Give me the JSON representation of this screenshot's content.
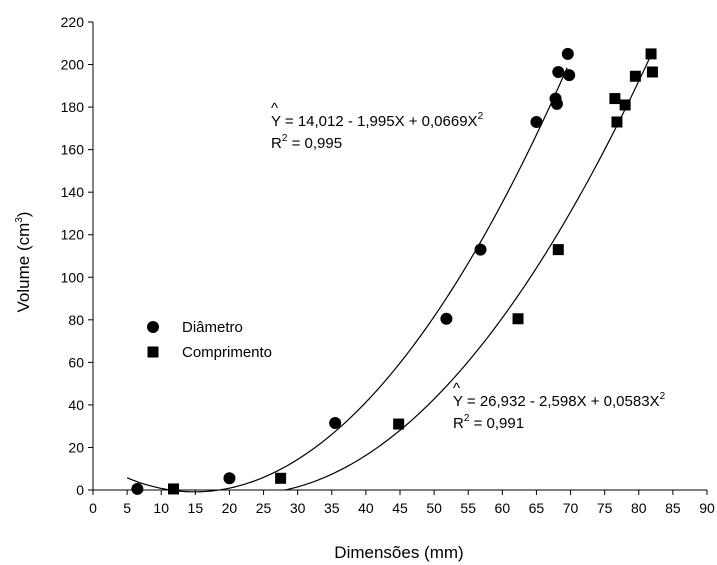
{
  "chart_data": {
    "type": "scatter",
    "title": "",
    "xlabel": "Dimensões (mm)",
    "ylabel_main": "Volume (cm",
    "ylabel_sup": "3",
    "ylabel_close": ")",
    "xlim": [
      0,
      90
    ],
    "ylim": [
      0,
      220
    ],
    "x_ticks": [
      "0",
      "5",
      "10",
      "15",
      "20",
      "25",
      "30",
      "35",
      "40",
      "45",
      "50",
      "55",
      "60",
      "65",
      "70",
      "75",
      "80",
      "85",
      "90"
    ],
    "y_ticks": [
      "0",
      "20",
      "40",
      "60",
      "80",
      "100",
      "120",
      "140",
      "160",
      "180",
      "200",
      "220"
    ],
    "grid": false,
    "legend_position": "left-middle",
    "series": [
      {
        "name": "Diâmetro",
        "marker": "circle",
        "points": [
          {
            "x": 6.5,
            "y": 0.5
          },
          {
            "x": 20.0,
            "y": 5.5
          },
          {
            "x": 35.5,
            "y": 31.5
          },
          {
            "x": 51.8,
            "y": 80.5
          },
          {
            "x": 56.8,
            "y": 113.0
          },
          {
            "x": 65.0,
            "y": 173.0
          },
          {
            "x": 67.8,
            "y": 184.0
          },
          {
            "x": 68.0,
            "y": 181.5
          },
          {
            "x": 68.2,
            "y": 196.5
          },
          {
            "x": 69.6,
            "y": 205.0
          },
          {
            "x": 69.8,
            "y": 195.0
          }
        ],
        "fit": {
          "a": 14.012,
          "b": -1.995,
          "c": 0.0669,
          "x_range": [
            5,
            69.5
          ]
        },
        "equation": {
          "lhs": "Y",
          "rhs": " = 14,012 - 1,995X + 0,0669X",
          "sup": "2",
          "r2_label": "R",
          "r2_sup": "2",
          "r2_value": " = 0,995"
        }
      },
      {
        "name": "Comprimento",
        "marker": "square",
        "points": [
          {
            "x": 11.8,
            "y": 0.5
          },
          {
            "x": 27.5,
            "y": 5.5
          },
          {
            "x": 44.8,
            "y": 31.0
          },
          {
            "x": 62.3,
            "y": 80.5
          },
          {
            "x": 68.2,
            "y": 113.0
          },
          {
            "x": 76.5,
            "y": 184.0
          },
          {
            "x": 76.8,
            "y": 173.0
          },
          {
            "x": 78.0,
            "y": 181.0
          },
          {
            "x": 79.5,
            "y": 194.5
          },
          {
            "x": 81.8,
            "y": 205.0
          },
          {
            "x": 82.0,
            "y": 196.5
          }
        ],
        "fit": {
          "a": 26.932,
          "b": -2.598,
          "c": 0.0583,
          "x_range": [
            28,
            81.5
          ]
        },
        "equation": {
          "lhs": "Y",
          "rhs": " = 26,932 - 2,598X + 0,0583X",
          "sup": "2",
          "r2_label": "R",
          "r2_sup": "2",
          "r2_value": " = 0,991"
        }
      }
    ]
  }
}
